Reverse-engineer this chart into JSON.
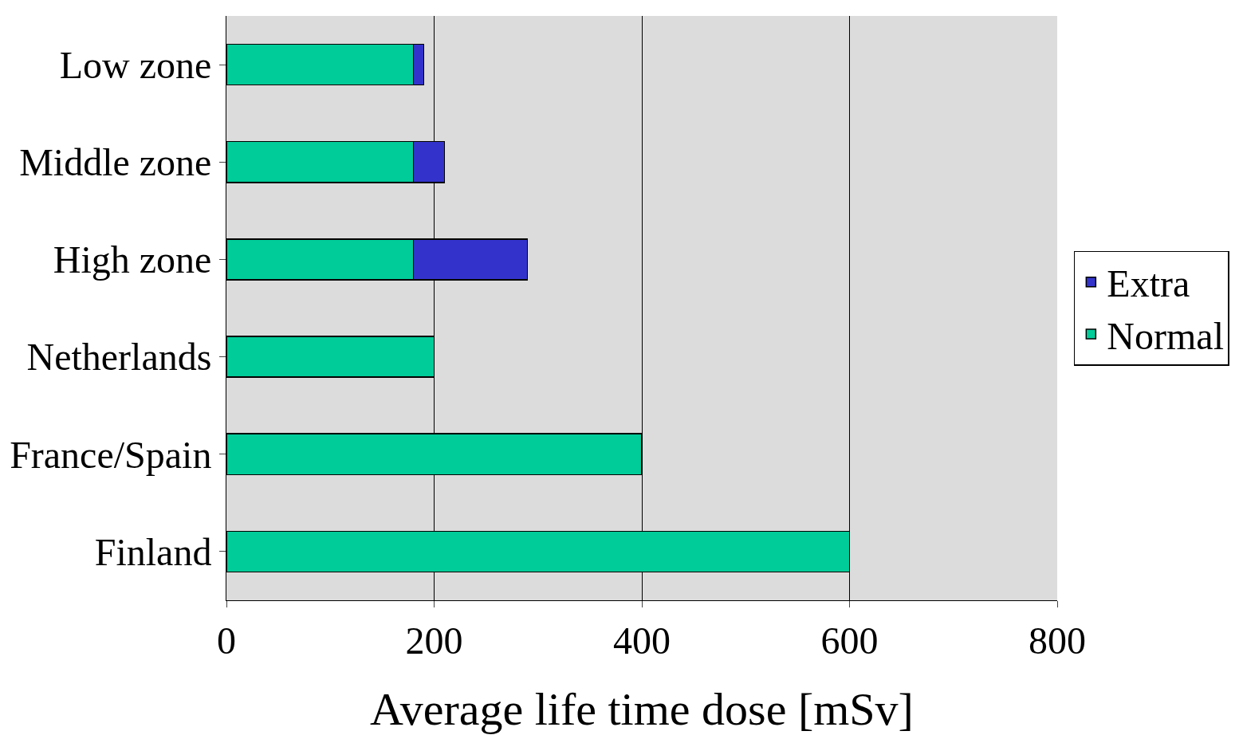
{
  "chart_data": {
    "type": "bar",
    "orientation": "horizontal",
    "stacked": true,
    "xlabel": "Average life time dose [mSv]",
    "categories": [
      "Low zone",
      "Middle zone",
      "High zone",
      "Netherlands",
      "France/Spain",
      "Finland"
    ],
    "series": [
      {
        "name": "Normal",
        "color": "#00cc99",
        "values": [
          180,
          180,
          180,
          200,
          400,
          600
        ]
      },
      {
        "name": "Extra",
        "color": "#3333cc",
        "values": [
          10,
          30,
          110,
          null,
          null,
          null
        ]
      }
    ],
    "xlim": [
      0,
      800
    ],
    "xticks": [
      0,
      200,
      400,
      600,
      800
    ],
    "grid": "x",
    "legend": "right"
  }
}
